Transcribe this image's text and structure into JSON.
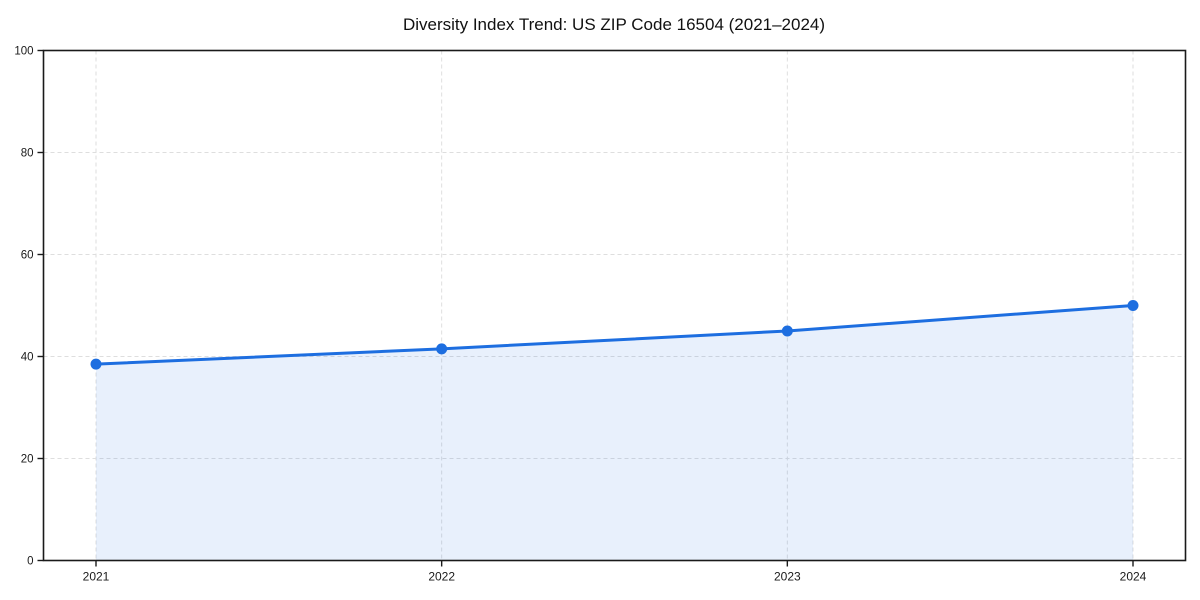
{
  "chart_data": {
    "type": "line",
    "title": "Diversity Index Trend: US ZIP Code 16504 (2021–2024)",
    "x": [
      2021,
      2022,
      2023,
      2024
    ],
    "x_tick_labels": [
      "2021",
      "2022",
      "2023",
      "2024"
    ],
    "series": [
      {
        "name": "Diversity Index",
        "values": [
          38.5,
          41.5,
          45,
          50
        ]
      }
    ],
    "xlabel": "",
    "ylabel": "",
    "ylim": [
      0,
      100
    ],
    "yticks": [
      0,
      20,
      40,
      60,
      80,
      100
    ],
    "grid": "dashed light-gray, horizontal and vertical",
    "legend": "none",
    "area_fill": true,
    "markers": true,
    "line_color": "#1d6ee0",
    "marker_color": "#1d6ee0",
    "fill_color_rgba": "rgba(29,110,224,0.10)",
    "gridline_color": "#dedede",
    "axis_color": "#1a1a1a",
    "background_color": "#ffffff"
  }
}
